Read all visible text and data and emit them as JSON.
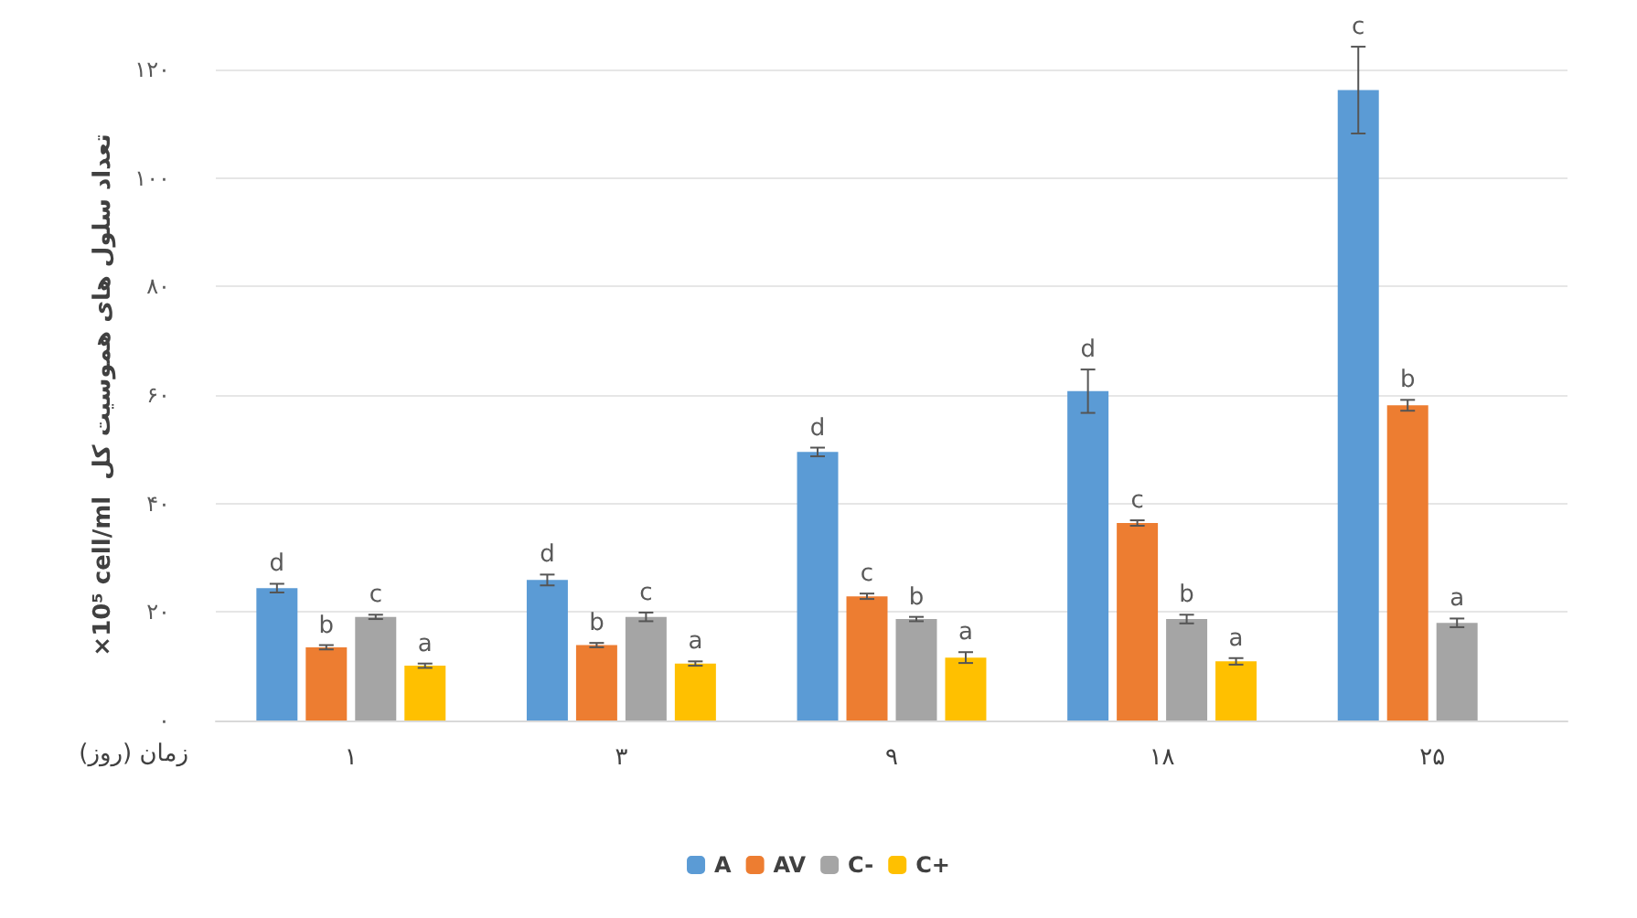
{
  "chart_data": {
    "type": "bar",
    "xlabel": "زمان (روز)",
    "ylabel": "×10⁵ cell/ml  تعداد سلول های هموسیت کل",
    "categories": [
      "۱",
      "۳",
      "۹",
      "۱۸",
      "۲۵"
    ],
    "series": [
      {
        "name": "A",
        "color": "#5b9bd5",
        "values": [
          24.4,
          25.9,
          49.5,
          60.7,
          116.2
        ],
        "errors": [
          0.8,
          1,
          0.8,
          4,
          8
        ],
        "value_labels": [
          "d",
          "d",
          "d",
          "d",
          "c"
        ]
      },
      {
        "name": "AV",
        "color": "#ed7d31",
        "values": [
          13.5,
          13.9,
          22.9,
          36.4,
          58.1
        ],
        "errors": [
          0.4,
          0.4,
          0.5,
          0.5,
          1
        ],
        "value_labels": [
          "b",
          "b",
          "c",
          "c",
          "b"
        ]
      },
      {
        "name": "C-",
        "color": "#a5a5a5",
        "values": [
          19.1,
          19.1,
          18.7,
          18.7,
          18
        ],
        "errors": [
          0.4,
          0.8,
          0.4,
          0.8,
          0.8
        ],
        "value_labels": [
          "c",
          "c",
          "b",
          "b",
          "a"
        ]
      },
      {
        "name": "C+",
        "color": "#ffc000",
        "values": [
          10.1,
          10.5,
          11.6,
          10.9,
          null
        ],
        "errors": [
          0.4,
          0.4,
          1,
          0.6,
          null
        ],
        "value_labels": [
          "a",
          "a",
          "a",
          "a",
          null
        ]
      }
    ],
    "ylim": [
      0,
      120
    ],
    "yticks": [
      {
        "value": 0,
        "label": "۰"
      },
      {
        "value": 20,
        "label": "۲۰"
      },
      {
        "value": 40,
        "label": "۴۰"
      },
      {
        "value": 60,
        "label": "۶۰"
      },
      {
        "value": 80,
        "label": "۸۰"
      },
      {
        "value": 100,
        "label": "۱۰۰"
      },
      {
        "value": 120,
        "label": "۱۲۰"
      }
    ],
    "grid": "y",
    "legend": "bottom"
  }
}
